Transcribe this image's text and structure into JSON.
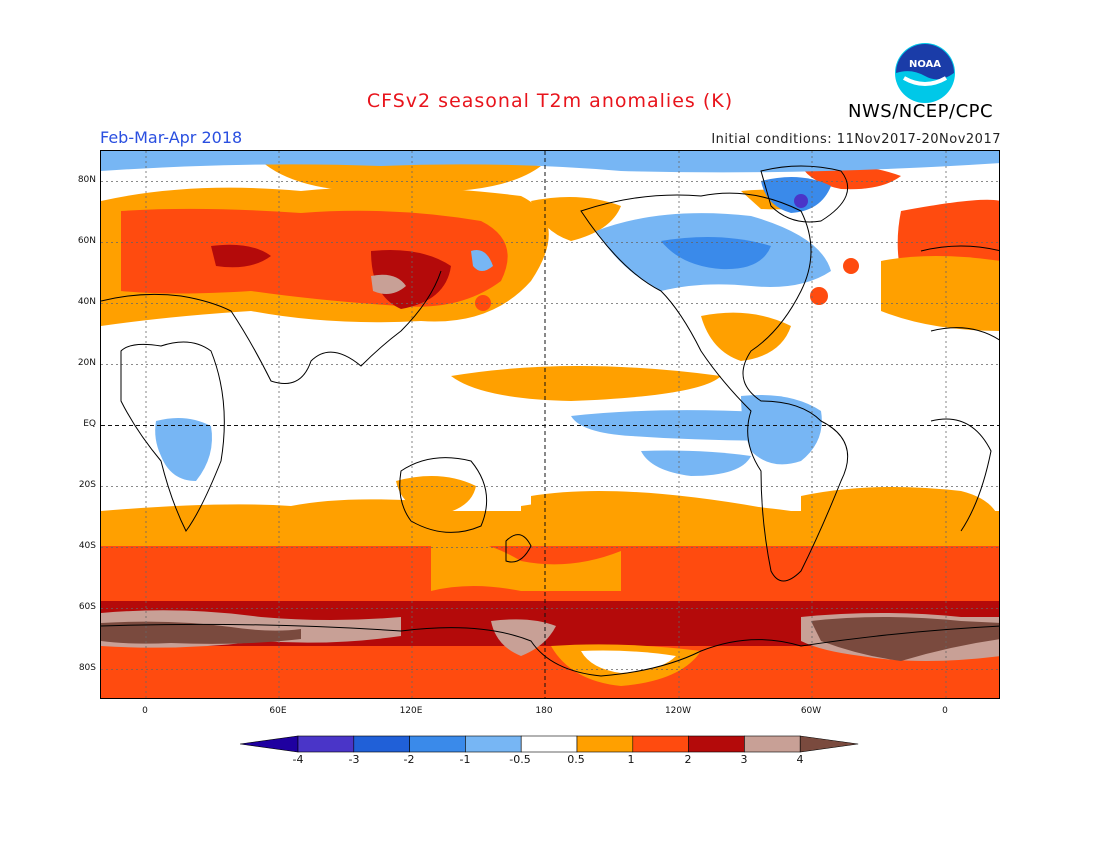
{
  "title": "CFSv2 seasonal T2m anomalies (K)",
  "period": "Feb-Mar-Apr 2018",
  "initial_conditions": "Initial conditions: 11Nov2017-20Nov2017",
  "agency": "NWS/NCEP/CPC",
  "logo_text": "NOAA",
  "lat_labels": [
    "80N",
    "60N",
    "40N",
    "20N",
    "EQ",
    "20S",
    "40S",
    "60S",
    "80S"
  ],
  "lon_labels": [
    "0",
    "60E",
    "120E",
    "180",
    "120W",
    "60W",
    "0"
  ],
  "colorbar": {
    "labels": [
      "-4",
      "-3",
      "-2",
      "-1",
      "-0.5",
      "0.5",
      "1",
      "2",
      "3",
      "4"
    ],
    "colors": [
      "#1f00a0",
      "#4a35c8",
      "#2060d8",
      "#3a8aea",
      "#77b6f4",
      "#ffffff",
      "#ffa000",
      "#ff4b0f",
      "#b40a0a",
      "#c8a096",
      "#7a4a3e"
    ]
  },
  "colors": {
    "title": "#e8141c",
    "period": "#2a4fe0",
    "warm_1": "#ffa000",
    "warm_2": "#ff4b0f",
    "warm_3": "#b40a0a",
    "warm_4": "#c8a096",
    "warm_5": "#7a4a3e",
    "cool_1": "#77b6f4",
    "cool_2": "#3a8aea",
    "cool_3": "#2060d8",
    "cool_4": "#4a35c8"
  }
}
